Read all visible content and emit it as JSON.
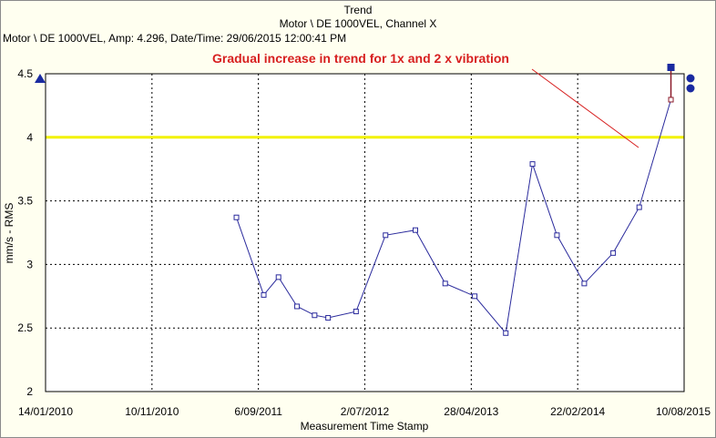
{
  "header": {
    "title": "Trend",
    "subtitle": "Motor \\ DE 1000VEL, Channel X",
    "info": "Motor \\ DE 1000VEL, Amp: 4.296, Date/Time: 29/06/2015 12:00:41 PM"
  },
  "colors": {
    "background": "#fffff0",
    "series": "#2a2a9c",
    "threshold": "#f2f200",
    "annotation": "#d71f1f",
    "cursor": "#8b1a2a",
    "marker": "#1a2aa0"
  },
  "chart_data": {
    "type": "line",
    "xlabel": "Measurement Time Stamp",
    "ylabel": "mm/s - RMS",
    "ylim": [
      2,
      4.5
    ],
    "y_ticks": [
      "2",
      "2.5",
      "3",
      "3.5",
      "4",
      "4.5"
    ],
    "x_ticks": [
      "14/01/2010",
      "10/11/2010",
      "6/09/2011",
      "2/07/2012",
      "28/04/2013",
      "22/02/2014",
      "10/08/2015"
    ],
    "x_range": [
      "14/01/2010",
      "10/08/2015"
    ],
    "grid": true,
    "threshold": 4.0,
    "annotation": "Gradual increase in trend for 1x and 2 x vibration",
    "series": [
      {
        "points": [
          {
            "x": "2011-09-14",
            "y": 3.37
          },
          {
            "x": "2011-12-10",
            "y": 2.76
          },
          {
            "x": "2012-01-26",
            "y": 2.9
          },
          {
            "x": "2012-03-25",
            "y": 2.67
          },
          {
            "x": "2012-05-20",
            "y": 2.6
          },
          {
            "x": "2012-07-02",
            "y": 2.58
          },
          {
            "x": "2012-09-29",
            "y": 2.63
          },
          {
            "x": "2013-01-01",
            "y": 3.23
          },
          {
            "x": "2013-04-06",
            "y": 3.27
          },
          {
            "x": "2013-07-10",
            "y": 2.85
          },
          {
            "x": "2013-10-12",
            "y": 2.75
          },
          {
            "x": "2014-01-19",
            "y": 2.46
          },
          {
            "x": "2014-04-14",
            "y": 3.79
          },
          {
            "x": "2014-07-01",
            "y": 3.23
          },
          {
            "x": "2014-09-26",
            "y": 2.85
          },
          {
            "x": "2014-12-27",
            "y": 3.09
          },
          {
            "x": "2015-03-20",
            "y": 3.45
          },
          {
            "x": "2015-06-29",
            "y": 4.296
          }
        ]
      }
    ]
  }
}
